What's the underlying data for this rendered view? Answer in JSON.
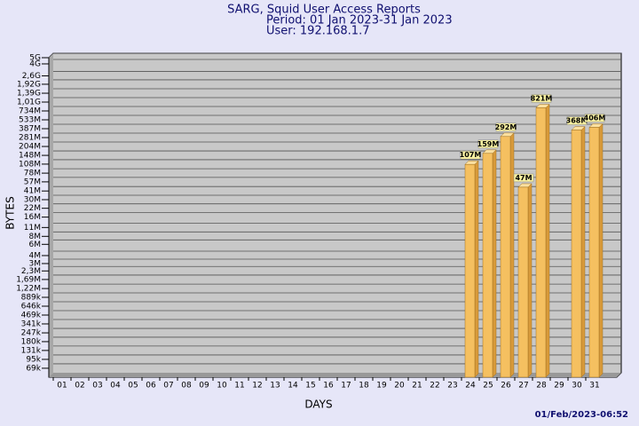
{
  "chart_data": {
    "type": "bar",
    "title": "SARG, Squid User Access Reports",
    "subtitle": "Period: 01 Jan 2023-31 Jan 2023",
    "user": "User: 192.168.1.7",
    "x_label": "DAYS",
    "y_label": "BYTES",
    "footer": "01/Feb/2023-06:52",
    "log_scale": true,
    "grid": true,
    "color": "#f5c060",
    "categories": [
      "01",
      "02",
      "03",
      "04",
      "05",
      "06",
      "07",
      "08",
      "09",
      "10",
      "11",
      "12",
      "13",
      "14",
      "15",
      "16",
      "17",
      "18",
      "19",
      "20",
      "21",
      "22",
      "23",
      "24",
      "25",
      "26",
      "27",
      "28",
      "29",
      "30",
      "31"
    ],
    "values": [
      null,
      null,
      null,
      null,
      null,
      null,
      null,
      null,
      null,
      null,
      null,
      null,
      null,
      null,
      null,
      null,
      null,
      null,
      null,
      null,
      null,
      null,
      null,
      107000000,
      159000000,
      292000000,
      47000000,
      821000000,
      null,
      368000000,
      406000000
    ],
    "value_labels": [
      null,
      null,
      null,
      null,
      null,
      null,
      null,
      null,
      null,
      null,
      null,
      null,
      null,
      null,
      null,
      null,
      null,
      null,
      null,
      null,
      null,
      null,
      null,
      "107M",
      "159M",
      "292M",
      "47M",
      "821M",
      null,
      "368M",
      "406M"
    ],
    "ylim": [
      50000,
      5000000000
    ],
    "yticks": [
      {
        "value": 69000,
        "label": "69k"
      },
      {
        "value": 95000,
        "label": "95k"
      },
      {
        "value": 131000,
        "label": "131k"
      },
      {
        "value": 180000,
        "label": "180k"
      },
      {
        "value": 247000,
        "label": "247k"
      },
      {
        "value": 341000,
        "label": "341k"
      },
      {
        "value": 469000,
        "label": "469k"
      },
      {
        "value": 646000,
        "label": "646k"
      },
      {
        "value": 889000,
        "label": "889k"
      },
      {
        "value": 1220000,
        "label": "1,22M"
      },
      {
        "value": 1690000,
        "label": "1,69M"
      },
      {
        "value": 2300000,
        "label": "2,3M"
      },
      {
        "value": 3000000,
        "label": "3M"
      },
      {
        "value": 4000000,
        "label": "4M"
      },
      {
        "value": 6000000,
        "label": "6M"
      },
      {
        "value": 8000000,
        "label": "8M"
      },
      {
        "value": 11000000,
        "label": "11M"
      },
      {
        "value": 16000000,
        "label": "16M"
      },
      {
        "value": 22000000,
        "label": "22M"
      },
      {
        "value": 30000000,
        "label": "30M"
      },
      {
        "value": 41000000,
        "label": "41M"
      },
      {
        "value": 57000000,
        "label": "57M"
      },
      {
        "value": 78000000,
        "label": "78M"
      },
      {
        "value": 108000000,
        "label": "108M"
      },
      {
        "value": 148000000,
        "label": "148M"
      },
      {
        "value": 204000000,
        "label": "204M"
      },
      {
        "value": 281000000,
        "label": "281M"
      },
      {
        "value": 387000000,
        "label": "387M"
      },
      {
        "value": 533000000,
        "label": "533M"
      },
      {
        "value": 734000000,
        "label": "734M"
      },
      {
        "value": 1010000000,
        "label": "1,01G"
      },
      {
        "value": 1390000000,
        "label": "1,39G"
      },
      {
        "value": 1920000000,
        "label": "1,92G"
      },
      {
        "value": 2600000000,
        "label": "2,6G"
      },
      {
        "value": 4000000000,
        "label": "4G"
      },
      {
        "value": 5000000000,
        "label": "5G"
      }
    ]
  }
}
